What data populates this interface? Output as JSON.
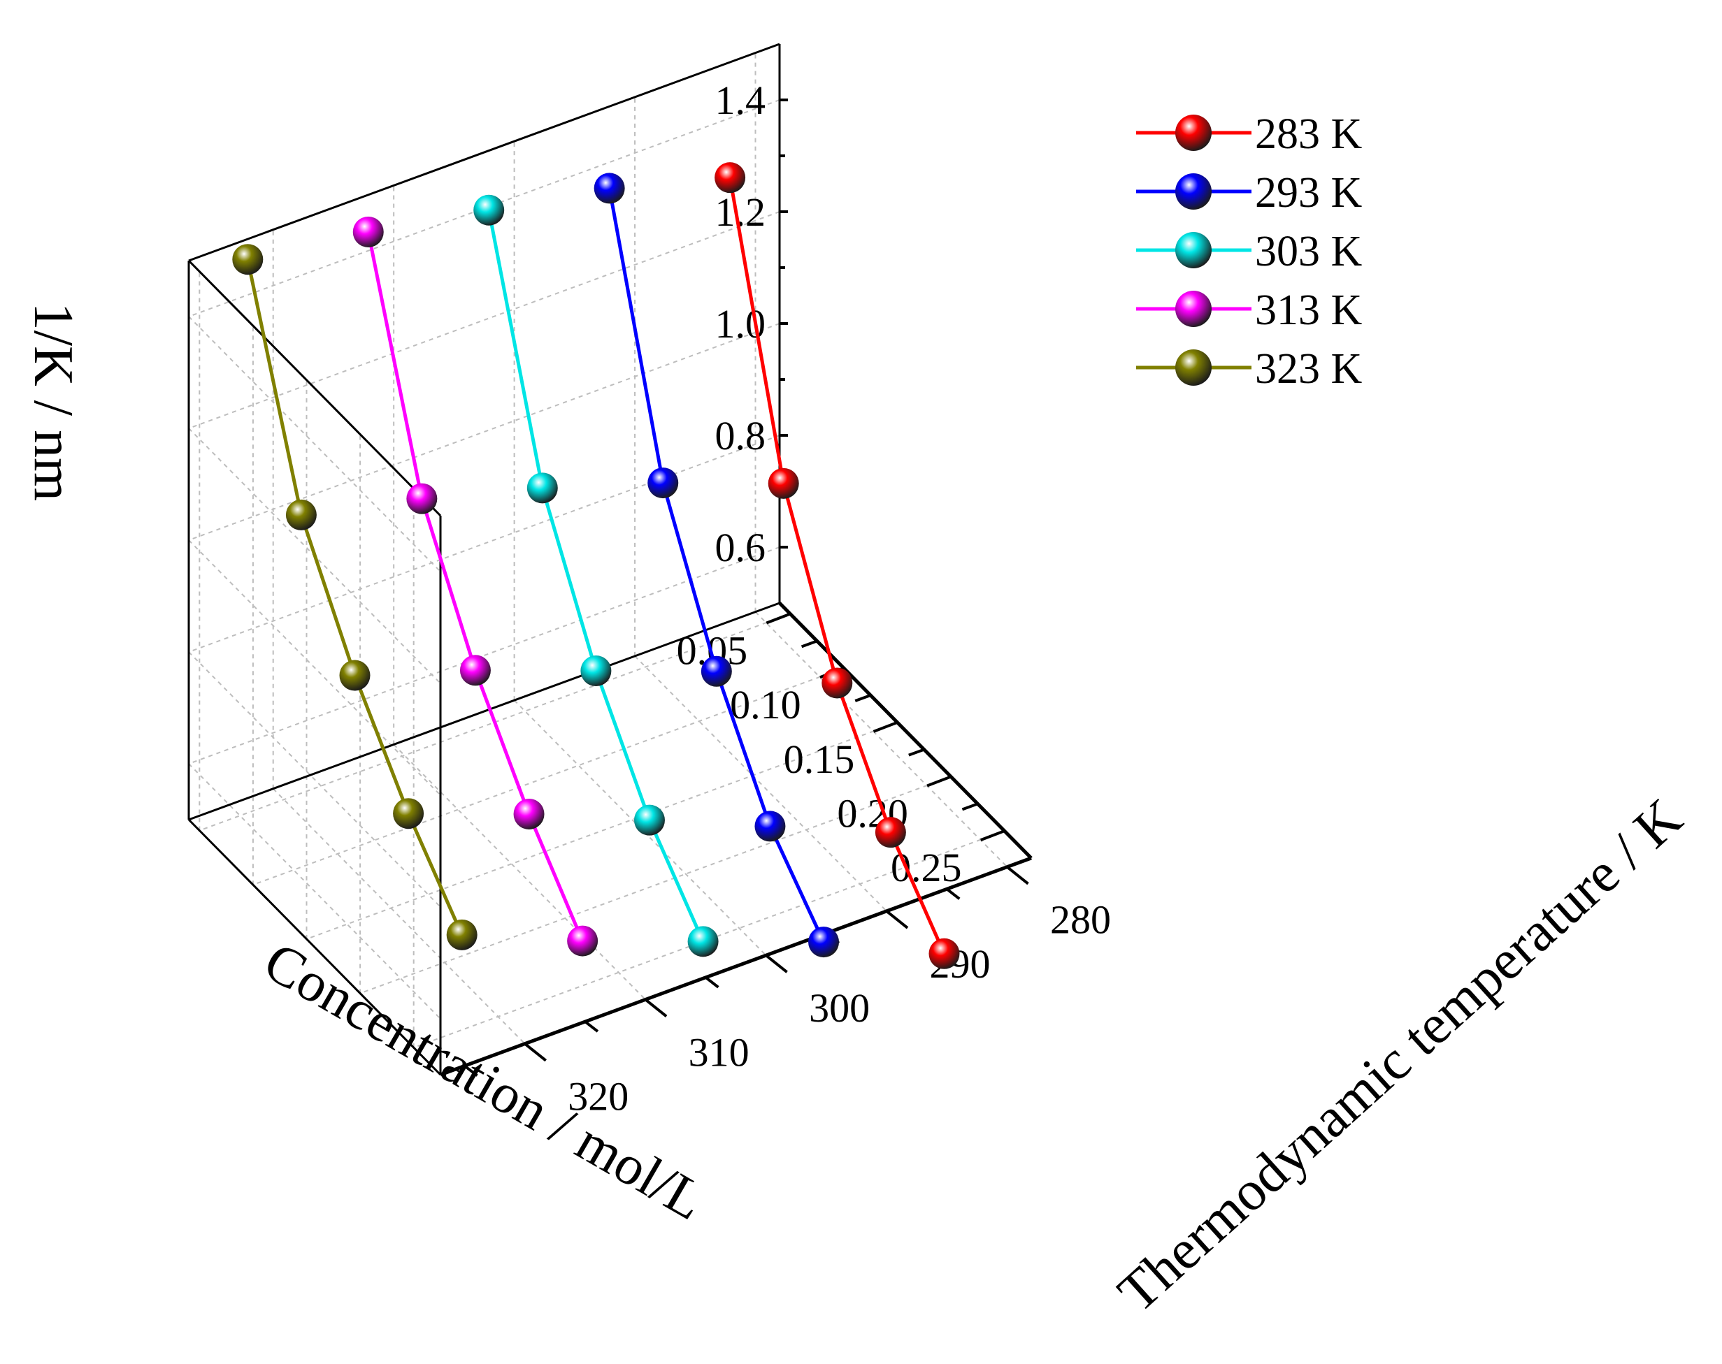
{
  "chart_data": {
    "type": "line",
    "projection": "3d",
    "title": "",
    "xlabel": "Concentration / mol/L",
    "ylabel": "Thermodynamic temperature / K",
    "zlabel": "1/K / nm",
    "x_ticks": [
      "0.05",
      "0.10",
      "0.15",
      "0.20",
      "0.25"
    ],
    "y_ticks": [
      "280",
      "290",
      "300",
      "310",
      "320"
    ],
    "z_ticks": [
      "0.6",
      "0.8",
      "1.0",
      "1.2",
      "1.4"
    ],
    "xlim": [
      0.04,
      0.275
    ],
    "ylim": [
      278,
      327
    ],
    "zlim": [
      0.5,
      1.5
    ],
    "x": [
      0.05,
      0.1,
      0.15,
      0.2,
      0.25
    ],
    "series": [
      {
        "name": "283 K",
        "temperature": 283,
        "color": "#ff0000",
        "values": [
          1.32,
          0.87,
          0.61,
          0.44,
          0.32
        ]
      },
      {
        "name": "293 K",
        "temperature": 293,
        "color": "#0000ff",
        "values": [
          1.38,
          0.95,
          0.71,
          0.53,
          0.42
        ]
      },
      {
        "name": "303 K",
        "temperature": 303,
        "color": "#00e5e5",
        "values": [
          1.42,
          1.02,
          0.79,
          0.62,
          0.5
        ]
      },
      {
        "name": "313 K",
        "temperature": 313,
        "color": "#ff00ff",
        "values": [
          1.46,
          1.08,
          0.87,
          0.71,
          0.58
        ]
      },
      {
        "name": "323 K",
        "temperature": 323,
        "color": "#808000",
        "values": [
          1.49,
          1.13,
          0.94,
          0.79,
          0.67
        ]
      }
    ],
    "legend_position": "top-right",
    "grid": true
  }
}
